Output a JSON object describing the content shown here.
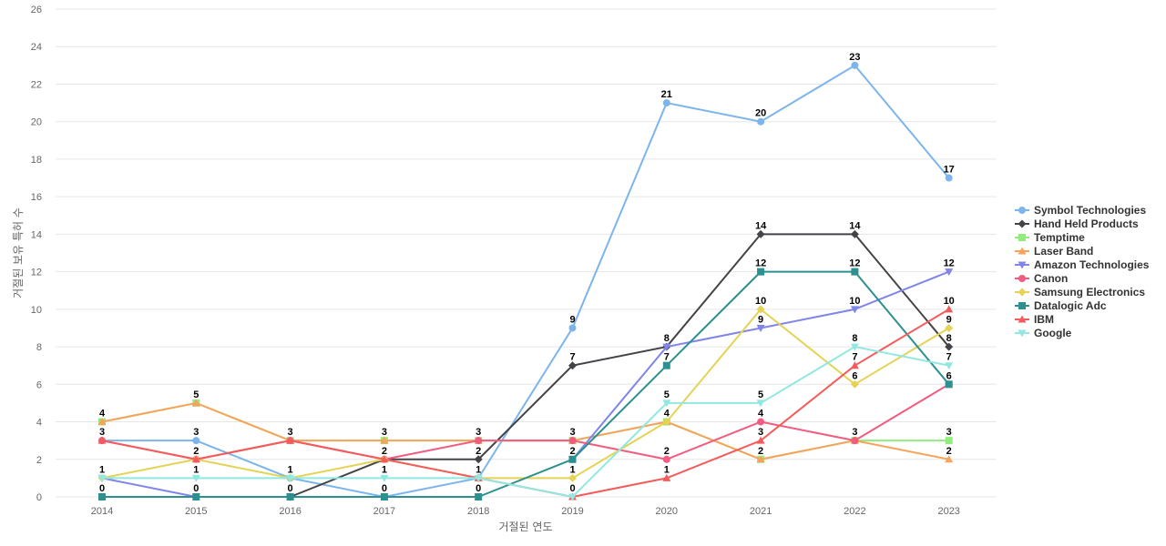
{
  "chart_data": {
    "type": "line",
    "title": "",
    "xlabel": "거절된 연도",
    "ylabel": "거절된 보유 특허 수",
    "x": [
      "2014",
      "2015",
      "2016",
      "2017",
      "2018",
      "2019",
      "2020",
      "2021",
      "2022",
      "2023"
    ],
    "ylim": [
      0,
      26
    ],
    "yticks": [
      0,
      2,
      4,
      6,
      8,
      10,
      12,
      14,
      16,
      18,
      20,
      22,
      24,
      26
    ],
    "grid": true,
    "legend_position": "right",
    "series": [
      {
        "name": "Symbol Technologies",
        "color": "#7cb5ec",
        "marker": "circle",
        "values": [
          3,
          3,
          1,
          0,
          1,
          9,
          21,
          20,
          23,
          17
        ]
      },
      {
        "name": "Hand Held Products",
        "color": "#434348",
        "marker": "diamond",
        "values": [
          null,
          null,
          0,
          2,
          2,
          7,
          8,
          14,
          14,
          8
        ]
      },
      {
        "name": "Temptime",
        "color": "#90ed7d",
        "marker": "square",
        "values": [
          4,
          5,
          3,
          3,
          3,
          3,
          4,
          2,
          3,
          3
        ]
      },
      {
        "name": "Laser Band",
        "color": "#f7a35c",
        "marker": "triangle",
        "values": [
          4,
          5,
          3,
          3,
          3,
          3,
          4,
          2,
          3,
          2
        ]
      },
      {
        "name": "Amazon Technologies",
        "color": "#8085e9",
        "marker": "triangle-down",
        "values": [
          1,
          0,
          0,
          null,
          null,
          2,
          8,
          9,
          10,
          12
        ]
      },
      {
        "name": "Canon",
        "color": "#f15c80",
        "marker": "circle",
        "values": [
          3,
          2,
          3,
          2,
          3,
          3,
          2,
          4,
          3,
          6
        ]
      },
      {
        "name": "Samsung Electronics",
        "color": "#e4d354",
        "marker": "diamond",
        "values": [
          1,
          2,
          1,
          2,
          1,
          1,
          4,
          10,
          6,
          9
        ]
      },
      {
        "name": "Datalogic Adc",
        "color": "#2b908f",
        "marker": "square",
        "values": [
          0,
          0,
          0,
          0,
          0,
          2,
          7,
          12,
          12,
          6
        ]
      },
      {
        "name": "IBM",
        "color": "#f45b5b",
        "marker": "triangle",
        "values": [
          3,
          2,
          3,
          2,
          1,
          0,
          1,
          3,
          7,
          10
        ]
      },
      {
        "name": "Google",
        "color": "#91e8e1",
        "marker": "triangle-down",
        "values": [
          1,
          1,
          1,
          1,
          1,
          0,
          5,
          5,
          8,
          7
        ]
      }
    ],
    "data_labels": [
      {
        "x": "2014",
        "y": 4,
        "text": "4"
      },
      {
        "x": "2014",
        "y": 3,
        "text": "3"
      },
      {
        "x": "2014",
        "y": 1,
        "text": "1"
      },
      {
        "x": "2014",
        "y": 0,
        "text": "0"
      },
      {
        "x": "2015",
        "y": 5,
        "text": "5"
      },
      {
        "x": "2015",
        "y": 3,
        "text": "3"
      },
      {
        "x": "2015",
        "y": 2,
        "text": "2"
      },
      {
        "x": "2015",
        "y": 1,
        "text": "1"
      },
      {
        "x": "2015",
        "y": 0,
        "text": "0"
      },
      {
        "x": "2016",
        "y": 3,
        "text": "3"
      },
      {
        "x": "2016",
        "y": 1,
        "text": "1"
      },
      {
        "x": "2016",
        "y": 0,
        "text": "0"
      },
      {
        "x": "2017",
        "y": 3,
        "text": "3"
      },
      {
        "x": "2017",
        "y": 2,
        "text": "2"
      },
      {
        "x": "2017",
        "y": 1,
        "text": "1"
      },
      {
        "x": "2017",
        "y": 0,
        "text": "0"
      },
      {
        "x": "2018",
        "y": 3,
        "text": "3"
      },
      {
        "x": "2018",
        "y": 2,
        "text": "2"
      },
      {
        "x": "2018",
        "y": 1,
        "text": "1"
      },
      {
        "x": "2018",
        "y": 0,
        "text": "0"
      },
      {
        "x": "2019",
        "y": 9,
        "text": "9"
      },
      {
        "x": "2019",
        "y": 7,
        "text": "7"
      },
      {
        "x": "2019",
        "y": 3,
        "text": "3"
      },
      {
        "x": "2019",
        "y": 2,
        "text": "2"
      },
      {
        "x": "2019",
        "y": 1,
        "text": "1"
      },
      {
        "x": "2019",
        "y": 0,
        "text": "0"
      },
      {
        "x": "2020",
        "y": 21,
        "text": "21"
      },
      {
        "x": "2020",
        "y": 8,
        "text": "8"
      },
      {
        "x": "2020",
        "y": 7,
        "text": "7"
      },
      {
        "x": "2020",
        "y": 5,
        "text": "5"
      },
      {
        "x": "2020",
        "y": 4,
        "text": "4"
      },
      {
        "x": "2020",
        "y": 2,
        "text": "2"
      },
      {
        "x": "2020",
        "y": 1,
        "text": "1"
      },
      {
        "x": "2021",
        "y": 20,
        "text": "20"
      },
      {
        "x": "2021",
        "y": 14,
        "text": "14"
      },
      {
        "x": "2021",
        "y": 12,
        "text": "12"
      },
      {
        "x": "2021",
        "y": 10,
        "text": "10"
      },
      {
        "x": "2021",
        "y": 9,
        "text": "9"
      },
      {
        "x": "2021",
        "y": 5,
        "text": "5"
      },
      {
        "x": "2021",
        "y": 4,
        "text": "4"
      },
      {
        "x": "2021",
        "y": 3,
        "text": "3"
      },
      {
        "x": "2021",
        "y": 2,
        "text": "2"
      },
      {
        "x": "2022",
        "y": 23,
        "text": "23"
      },
      {
        "x": "2022",
        "y": 14,
        "text": "14"
      },
      {
        "x": "2022",
        "y": 12,
        "text": "12"
      },
      {
        "x": "2022",
        "y": 10,
        "text": "10"
      },
      {
        "x": "2022",
        "y": 8,
        "text": "8"
      },
      {
        "x": "2022",
        "y": 7,
        "text": "7"
      },
      {
        "x": "2022",
        "y": 6,
        "text": "6"
      },
      {
        "x": "2022",
        "y": 3,
        "text": "3"
      },
      {
        "x": "2023",
        "y": 17,
        "text": "17"
      },
      {
        "x": "2023",
        "y": 12,
        "text": "12"
      },
      {
        "x": "2023",
        "y": 10,
        "text": "10"
      },
      {
        "x": "2023",
        "y": 9,
        "text": "9"
      },
      {
        "x": "2023",
        "y": 8,
        "text": "8"
      },
      {
        "x": "2023",
        "y": 7,
        "text": "7"
      },
      {
        "x": "2023",
        "y": 6,
        "text": "6"
      },
      {
        "x": "2023",
        "y": 3,
        "text": "3"
      },
      {
        "x": "2023",
        "y": 2,
        "text": "2"
      }
    ]
  }
}
